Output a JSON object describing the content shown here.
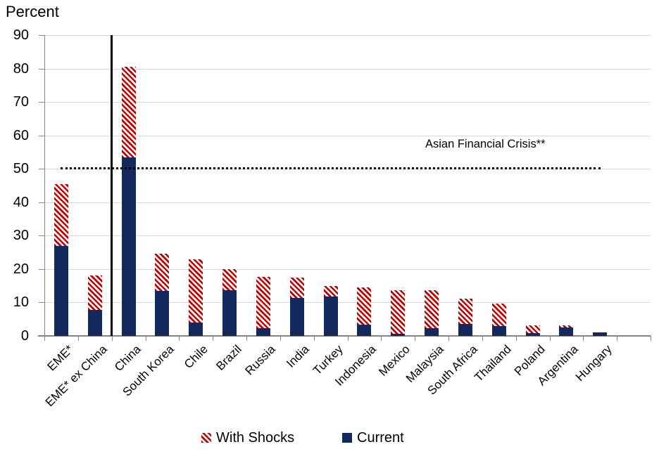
{
  "chart_data": {
    "type": "bar",
    "subtype": "stacked",
    "ylabel": "Percent",
    "xlabel": "",
    "ylim": [
      0,
      90
    ],
    "ytick_step": 10,
    "grid": true,
    "legend_position": "bottom",
    "categories": [
      "EME*",
      "EME* ex China",
      "China",
      "South Korea",
      "Chile",
      "Brazil",
      "Russia",
      "India",
      "Turkey",
      "Indonesia",
      "Mexico",
      "Malaysia",
      "South Africa",
      "Thailand",
      "Poland",
      "Argentina",
      "Hungary"
    ],
    "series": [
      {
        "name": "Current",
        "fill": "solid",
        "values": [
          27,
          7.8,
          53.5,
          13.5,
          3.9,
          13.6,
          2.3,
          11.3,
          11.8,
          3.4,
          0.7,
          2.3,
          3.6,
          2.9,
          0.8,
          2.6,
          1.0
        ]
      },
      {
        "name": "With Shocks",
        "fill": "diagonal-hatch",
        "values": [
          18.5,
          10.2,
          27,
          11,
          19.1,
          6.4,
          15.4,
          6.2,
          3.2,
          11.1,
          13,
          11.3,
          7.6,
          6.8,
          2.4,
          0.5,
          0
        ]
      }
    ],
    "stack_totals": [
      45.5,
      18,
      80.5,
      24.5,
      23,
      20,
      17.7,
      17.5,
      15,
      14.5,
      13.7,
      13.6,
      11.2,
      9.7,
      3.2,
      3.1,
      1.0
    ],
    "reference_line": {
      "value": 50,
      "style": "dotted",
      "color": "#000000"
    },
    "annotation": {
      "text": "Asian Financial Crisis**",
      "near_value": 50
    },
    "separator": {
      "after_category": "EME* ex China",
      "color": "#000000"
    },
    "legend": {
      "items": [
        {
          "label": "With Shocks",
          "swatch": "hatch"
        },
        {
          "label": "Current",
          "swatch": "solid"
        }
      ]
    },
    "colors": {
      "current": "#13285C",
      "with_shocks": "#C00000",
      "gridline": "#D9D9D9",
      "axis": "#858585",
      "text": "#000000"
    }
  }
}
